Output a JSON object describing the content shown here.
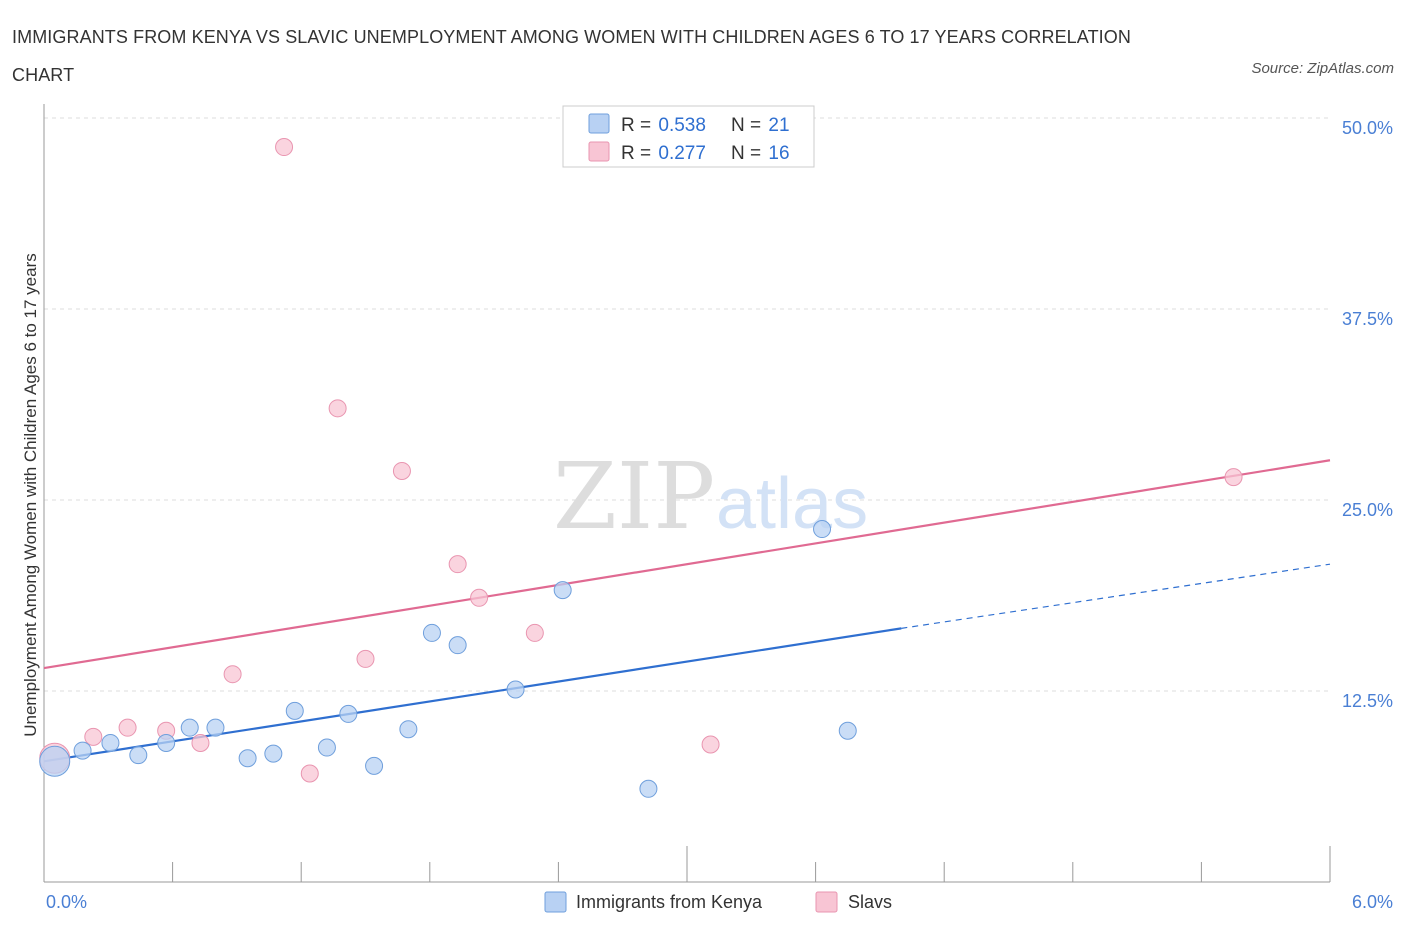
{
  "title": "IMMIGRANTS FROM KENYA VS SLAVIC UNEMPLOYMENT AMONG WOMEN WITH CHILDREN AGES 6 TO 17 YEARS CORRELATION CHART",
  "source": "Source: ZipAtlas.com",
  "watermark": {
    "zip": "ZIP",
    "atlas": "atlas"
  },
  "legend": {
    "items": [
      {
        "r_label": "R = ",
        "r_value": "0.538",
        "n_label": "N = ",
        "n_value": "21"
      },
      {
        "r_label": "R = ",
        "r_value": "0.277",
        "n_label": "N = ",
        "n_value": "16"
      }
    ]
  },
  "colors": {
    "kenya_fill": "#b8d1f3",
    "kenya_stroke": "#6f9fdc",
    "kenya_line": "#2f6fd0",
    "slavs_fill": "#f8c5d4",
    "slavs_stroke": "#e995b0",
    "slavs_line": "#e06a92",
    "grid": "#dddddd",
    "axis": "#999999"
  },
  "chart_data": {
    "type": "scatter",
    "title": "IMMIGRANTS FROM KENYA VS SLAVIC UNEMPLOYMENT AMONG WOMEN WITH CHILDREN AGES 6 TO 17 YEARS CORRELATION CHART",
    "xlabel": "",
    "ylabel": "Unemployment Among Women with Children Ages 6 to 17 years",
    "xlim": [
      0,
      6.0
    ],
    "ylim": [
      0,
      50.0
    ],
    "x_tick_labels": [
      "0.0%",
      "6.0%"
    ],
    "y_ticks": [
      12.5,
      25.0,
      37.5,
      50.0
    ],
    "y_tick_labels": [
      "12.5%",
      "25.0%",
      "37.5%",
      "50.0%"
    ],
    "grid": true,
    "legend_position": "top-center",
    "series": [
      {
        "name": "Immigrants from Kenya",
        "r": 0.538,
        "n": 21,
        "points": [
          {
            "x": 0.05,
            "y": 7.9,
            "size": "large"
          },
          {
            "x": 0.18,
            "y": 8.6
          },
          {
            "x": 0.31,
            "y": 9.1
          },
          {
            "x": 0.44,
            "y": 8.3
          },
          {
            "x": 0.57,
            "y": 9.1
          },
          {
            "x": 0.68,
            "y": 10.1
          },
          {
            "x": 0.8,
            "y": 10.1
          },
          {
            "x": 0.95,
            "y": 8.1
          },
          {
            "x": 1.07,
            "y": 8.4
          },
          {
            "x": 1.17,
            "y": 11.2
          },
          {
            "x": 1.32,
            "y": 8.8
          },
          {
            "x": 1.42,
            "y": 11.0
          },
          {
            "x": 1.54,
            "y": 7.6
          },
          {
            "x": 1.7,
            "y": 10.0
          },
          {
            "x": 1.81,
            "y": 16.3
          },
          {
            "x": 1.93,
            "y": 15.5
          },
          {
            "x": 2.2,
            "y": 12.6
          },
          {
            "x": 2.42,
            "y": 19.1
          },
          {
            "x": 2.82,
            "y": 6.1
          },
          {
            "x": 3.63,
            "y": 23.1
          },
          {
            "x": 3.75,
            "y": 9.9
          }
        ],
        "trend": {
          "x0": 0.0,
          "y0": 7.9,
          "x1": 4.0,
          "y1": 16.6,
          "dashed_to_x": 6.0,
          "dashed_to_y": 20.8
        }
      },
      {
        "name": "Slavs",
        "r": 0.277,
        "n": 16,
        "points": [
          {
            "x": 0.05,
            "y": 8.1,
            "size": "large"
          },
          {
            "x": 0.23,
            "y": 9.5
          },
          {
            "x": 0.39,
            "y": 10.1
          },
          {
            "x": 0.57,
            "y": 9.9
          },
          {
            "x": 0.73,
            "y": 9.1
          },
          {
            "x": 0.88,
            "y": 13.6
          },
          {
            "x": 1.12,
            "y": 48.1
          },
          {
            "x": 1.24,
            "y": 7.1
          },
          {
            "x": 1.37,
            "y": 31.0
          },
          {
            "x": 1.5,
            "y": 14.6
          },
          {
            "x": 1.67,
            "y": 26.9
          },
          {
            "x": 1.93,
            "y": 20.8
          },
          {
            "x": 2.03,
            "y": 18.6
          },
          {
            "x": 2.29,
            "y": 16.3
          },
          {
            "x": 3.11,
            "y": 9.0
          },
          {
            "x": 5.55,
            "y": 26.5
          }
        ],
        "trend": {
          "x0": 0.0,
          "y0": 14.0,
          "x1": 6.0,
          "y1": 27.6
        }
      }
    ]
  }
}
